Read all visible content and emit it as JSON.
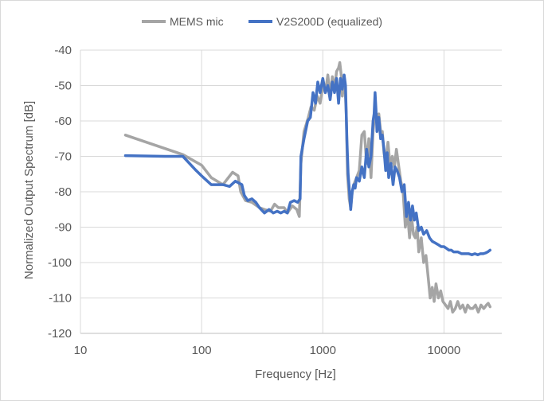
{
  "chart_data": {
    "type": "line",
    "xlabel": "Frequency [Hz]",
    "ylabel": "Normalized Output Spectrum [dB]",
    "x_scale": "log",
    "xlim": [
      10,
      30000
    ],
    "ylim": [
      -120,
      -40
    ],
    "x_ticks": [
      10,
      100,
      1000,
      10000
    ],
    "x_tick_labels": [
      "10",
      "100",
      "1000",
      "10000"
    ],
    "y_ticks": [
      -40,
      -50,
      -60,
      -70,
      -80,
      -90,
      -100,
      -110,
      -120
    ],
    "y_tick_labels": [
      "-40",
      "-50",
      "-60",
      "-70",
      "-80",
      "-90",
      "-100",
      "-110",
      "-120"
    ],
    "grid": true,
    "legend_position": "top",
    "series": [
      {
        "name": "MEMS mic",
        "color": "#a5a5a5",
        "points": [
          [
            23.5,
            -64
          ],
          [
            70,
            -69.5
          ],
          [
            100,
            -72.5
          ],
          [
            120,
            -76
          ],
          [
            150,
            -78
          ],
          [
            180,
            -74.5
          ],
          [
            200,
            -75.5
          ],
          [
            210,
            -80
          ],
          [
            230,
            -82.5
          ],
          [
            260,
            -83
          ],
          [
            300,
            -84.5
          ],
          [
            330,
            -85
          ],
          [
            370,
            -85.5
          ],
          [
            400,
            -83.5
          ],
          [
            430,
            -84.5
          ],
          [
            480,
            -84.5
          ],
          [
            510,
            -86
          ],
          [
            560,
            -84
          ],
          [
            610,
            -85
          ],
          [
            640,
            -87
          ],
          [
            660,
            -72
          ],
          [
            700,
            -63
          ],
          [
            760,
            -59
          ],
          [
            800,
            -56
          ],
          [
            850,
            -57
          ],
          [
            900,
            -53
          ],
          [
            950,
            -55
          ],
          [
            1000,
            -50
          ],
          [
            1050,
            -52
          ],
          [
            1100,
            -47
          ],
          [
            1150,
            -53
          ],
          [
            1200,
            -47.5
          ],
          [
            1250,
            -51
          ],
          [
            1300,
            -46
          ],
          [
            1350,
            -45
          ],
          [
            1380,
            -43.5
          ],
          [
            1420,
            -47
          ],
          [
            1450,
            -53
          ],
          [
            1480,
            -48
          ],
          [
            1520,
            -49
          ],
          [
            1560,
            -58
          ],
          [
            1600,
            -75
          ],
          [
            1650,
            -82
          ],
          [
            1700,
            -84.5
          ],
          [
            1750,
            -80
          ],
          [
            1800,
            -78
          ],
          [
            1900,
            -76
          ],
          [
            2000,
            -74
          ],
          [
            2100,
            -64
          ],
          [
            2200,
            -63
          ],
          [
            2300,
            -72
          ],
          [
            2400,
            -65
          ],
          [
            2500,
            -76
          ],
          [
            2600,
            -63
          ],
          [
            2700,
            -57
          ],
          [
            2800,
            -60
          ],
          [
            2900,
            -58
          ],
          [
            3000,
            -63
          ],
          [
            3100,
            -63
          ],
          [
            3200,
            -69
          ],
          [
            3300,
            -72
          ],
          [
            3450,
            -66
          ],
          [
            3600,
            -73
          ],
          [
            3750,
            -70
          ],
          [
            3900,
            -73
          ],
          [
            4050,
            -68
          ],
          [
            4200,
            -72
          ],
          [
            4400,
            -77
          ],
          [
            4600,
            -80
          ],
          [
            4800,
            -90
          ],
          [
            5000,
            -86
          ],
          [
            5200,
            -93
          ],
          [
            5400,
            -87
          ],
          [
            5600,
            -92
          ],
          [
            5800,
            -93
          ],
          [
            6000,
            -90
          ],
          [
            6200,
            -97
          ],
          [
            6500,
            -93
          ],
          [
            6800,
            -100
          ],
          [
            7100,
            -98
          ],
          [
            7400,
            -104
          ],
          [
            7700,
            -110
          ],
          [
            8000,
            -107
          ],
          [
            8300,
            -111
          ],
          [
            8600,
            -106
          ],
          [
            9000,
            -110
          ],
          [
            9400,
            -108
          ],
          [
            9800,
            -111
          ],
          [
            10300,
            -112
          ],
          [
            10800,
            -113
          ],
          [
            11300,
            -111
          ],
          [
            11800,
            -114
          ],
          [
            12400,
            -113
          ],
          [
            13000,
            -111
          ],
          [
            13600,
            -113
          ],
          [
            14300,
            -112
          ],
          [
            15000,
            -114
          ],
          [
            15700,
            -112
          ],
          [
            16500,
            -113
          ],
          [
            17300,
            -113
          ],
          [
            18200,
            -112
          ],
          [
            19200,
            -114
          ],
          [
            20200,
            -112
          ],
          [
            21300,
            -113
          ],
          [
            22400,
            -112
          ],
          [
            23200,
            -111.5
          ],
          [
            24000,
            -112.5
          ]
        ]
      },
      {
        "name": "V2S200D (equalized)",
        "color": "#4472c4",
        "points": [
          [
            23.5,
            -69.8
          ],
          [
            50,
            -70
          ],
          [
            70,
            -70
          ],
          [
            90,
            -74
          ],
          [
            100,
            -75.5
          ],
          [
            120,
            -78
          ],
          [
            150,
            -78
          ],
          [
            170,
            -78.5
          ],
          [
            190,
            -77
          ],
          [
            215,
            -78
          ],
          [
            225,
            -81
          ],
          [
            240,
            -82.5
          ],
          [
            260,
            -82
          ],
          [
            280,
            -83
          ],
          [
            300,
            -84.5
          ],
          [
            330,
            -86
          ],
          [
            360,
            -85
          ],
          [
            390,
            -86
          ],
          [
            420,
            -85.5
          ],
          [
            450,
            -86
          ],
          [
            480,
            -85.5
          ],
          [
            510,
            -86
          ],
          [
            540,
            -83
          ],
          [
            580,
            -82.5
          ],
          [
            620,
            -83
          ],
          [
            650,
            -82
          ],
          [
            660,
            -70
          ],
          [
            700,
            -65
          ],
          [
            750,
            -60
          ],
          [
            790,
            -59
          ],
          [
            830,
            -52
          ],
          [
            870,
            -55
          ],
          [
            910,
            -49
          ],
          [
            950,
            -52
          ],
          [
            1000,
            -48
          ],
          [
            1050,
            -52
          ],
          [
            1100,
            -50
          ],
          [
            1150,
            -54
          ],
          [
            1200,
            -49
          ],
          [
            1250,
            -52
          ],
          [
            1300,
            -48
          ],
          [
            1350,
            -55
          ],
          [
            1400,
            -48
          ],
          [
            1450,
            -51
          ],
          [
            1500,
            -47
          ],
          [
            1540,
            -50
          ],
          [
            1580,
            -65
          ],
          [
            1620,
            -75
          ],
          [
            1660,
            -80
          ],
          [
            1700,
            -85
          ],
          [
            1750,
            -80
          ],
          [
            1800,
            -78
          ],
          [
            1850,
            -79
          ],
          [
            1900,
            -76
          ],
          [
            2000,
            -77
          ],
          [
            2100,
            -73
          ],
          [
            2200,
            -76
          ],
          [
            2300,
            -68
          ],
          [
            2400,
            -73
          ],
          [
            2500,
            -70
          ],
          [
            2600,
            -60
          ],
          [
            2650,
            -58
          ],
          [
            2700,
            -52
          ],
          [
            2750,
            -57
          ],
          [
            2800,
            -63
          ],
          [
            2900,
            -59
          ],
          [
            3000,
            -65
          ],
          [
            3100,
            -64
          ],
          [
            3200,
            -68
          ],
          [
            3300,
            -74
          ],
          [
            3400,
            -69
          ],
          [
            3500,
            -76
          ],
          [
            3650,
            -72
          ],
          [
            3800,
            -78
          ],
          [
            3950,
            -73
          ],
          [
            4100,
            -74
          ],
          [
            4300,
            -76
          ],
          [
            4500,
            -80
          ],
          [
            4700,
            -78
          ],
          [
            4900,
            -87
          ],
          [
            5100,
            -83
          ],
          [
            5300,
            -88
          ],
          [
            5500,
            -84
          ],
          [
            5700,
            -88
          ],
          [
            5900,
            -86
          ],
          [
            6200,
            -91
          ],
          [
            6500,
            -90
          ],
          [
            6800,
            -92
          ],
          [
            7200,
            -91
          ],
          [
            7600,
            -93
          ],
          [
            8000,
            -94
          ],
          [
            8500,
            -94.5
          ],
          [
            9000,
            -95
          ],
          [
            9500,
            -95.5
          ],
          [
            10000,
            -95.5
          ],
          [
            10500,
            -96
          ],
          [
            11000,
            -96.5
          ],
          [
            11500,
            -96.5
          ],
          [
            12000,
            -97
          ],
          [
            13000,
            -97
          ],
          [
            14000,
            -97.5
          ],
          [
            15000,
            -97.5
          ],
          [
            16000,
            -97.5
          ],
          [
            17000,
            -97.8
          ],
          [
            18000,
            -97.5
          ],
          [
            19000,
            -97.8
          ],
          [
            20000,
            -97.5
          ],
          [
            21000,
            -97.5
          ],
          [
            22000,
            -97.3
          ],
          [
            23000,
            -97
          ],
          [
            24000,
            -96.5
          ]
        ]
      }
    ]
  }
}
